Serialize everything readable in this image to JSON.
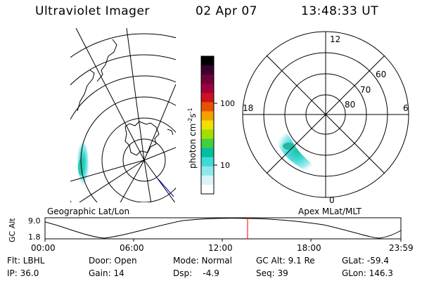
{
  "header": {
    "instrument": "Ultraviolet Imager",
    "date": "02 Apr 07",
    "time": "13:48:33 UT"
  },
  "colorbar": {
    "unit_label": "photon cm",
    "unit_exp1": "-2",
    "unit_s": "s",
    "unit_exp2": "-1",
    "ticks": [
      "100",
      "10"
    ],
    "colors": [
      "#000000",
      "#3a0030",
      "#6e003a",
      "#a0003a",
      "#cc1020",
      "#e85000",
      "#f5a000",
      "#f0e000",
      "#a0e000",
      "#40d040",
      "#00c0a0",
      "#40d8d8",
      "#90e8e8",
      "#d8f4f4",
      "#ffffff"
    ]
  },
  "geographic_panel": {
    "label": "Geographic Lat/Lon"
  },
  "apex_panel": {
    "label": "Apex MLat/MLT",
    "mlt_labels": {
      "top": "12",
      "left": "18",
      "right": "6",
      "bottom": "0"
    },
    "lat_labels": [
      "60",
      "70",
      "80"
    ]
  },
  "timeline": {
    "ylabel": "GC Alt",
    "ytick_top": "9.0",
    "ytick_bottom": "1.8",
    "xticks": [
      "00:00",
      "06:00",
      "12:00",
      "18:00",
      "23:59"
    ],
    "current_time_marker": "13:48",
    "marker_color": "#ff0000"
  },
  "info": {
    "flt": "Flt: LBHL",
    "ip": "IP: 36.0",
    "door": "Door: Open",
    "gain": "Gain: 14",
    "mode": "Mode: Normal",
    "dsp": "Dsp:    -4.9",
    "gcalt": "GC Alt: 9.1 Re",
    "seq": "Seq: 39",
    "glat": "GLat: -59.4",
    "glon": "GLon: 146.3"
  }
}
